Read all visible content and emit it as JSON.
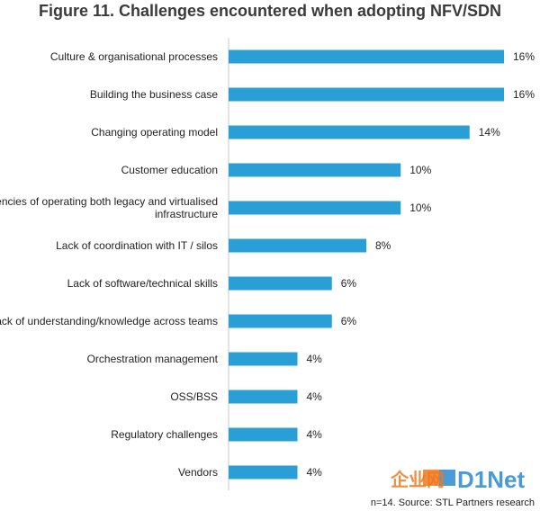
{
  "chart_data": {
    "type": "bar",
    "orientation": "horizontal",
    "title": "Figure 11. Challenges encountered when adopting NFV/SDN",
    "categories": [
      "Culture & organisational processes",
      "Building the business case",
      "Changing operating model",
      "Customer education",
      "Inefficiencies of operating both legacy and virtualised infrastructure",
      "Lack of coordination with IT / silos",
      "Lack of software/technical skills",
      "Lack of understanding/knowledge across teams",
      "Orchestration management",
      "OSS/BSS",
      "Regulatory challenges",
      "Vendors"
    ],
    "category_lines": [
      [
        "Culture & organisational processes"
      ],
      [
        "Building the business case"
      ],
      [
        "Changing operating model"
      ],
      [
        "Customer education"
      ],
      [
        "Inefficiencies of operating both legacy and virtualised",
        "infrastructure"
      ],
      [
        "Lack of coordination with IT / silos"
      ],
      [
        "Lack of software/technical skills"
      ],
      [
        "Lack of understanding/knowledge across teams"
      ],
      [
        "Orchestration management"
      ],
      [
        "OSS/BSS"
      ],
      [
        "Regulatory challenges"
      ],
      [
        "Vendors"
      ]
    ],
    "values": [
      16,
      16,
      14,
      10,
      10,
      8,
      6,
      6,
      4,
      4,
      4,
      4
    ],
    "data_labels": [
      "16%",
      "16%",
      "14%",
      "10%",
      "10%",
      "8%",
      "6%",
      "6%",
      "4%",
      "4%",
      "4%",
      "4%"
    ],
    "unit": "%",
    "xlim": [
      0,
      16
    ],
    "grid": false,
    "legend": "none",
    "bar_color": "#2a9fd6"
  },
  "footer": {
    "source": "n=14. Source: STL Partners research",
    "watermark": "企业网D1Net"
  },
  "colors": {
    "bar": "#2a9fd6",
    "axis": "#c8c8c8",
    "text": "#222222",
    "title": "#3a3a3a",
    "watermark_orange": "#f0781e",
    "watermark_blue": "#2a8ad0"
  }
}
